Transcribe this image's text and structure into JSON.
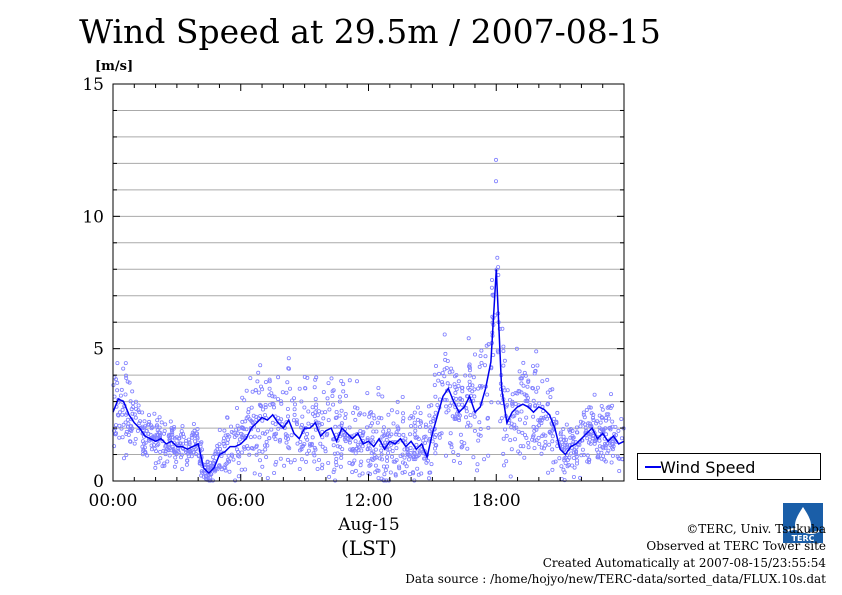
{
  "title": "Wind Speed at 29.5m / 2007-08-15",
  "legend": {
    "label": "Wind Speed"
  },
  "credits": {
    "copyright": "©TERC, Univ. Tsukuba",
    "observed": "Observed at TERC Tower site",
    "created": "Created Automatically at 2007-08-15/23:55:54",
    "source": "Data source : /home/hojyo/new/TERC-data/sorted_data/FLUX.10s.dat"
  },
  "logo": {
    "text": "TERC"
  },
  "colors": {
    "line": "#0000ee",
    "points": "#8080ff",
    "grid": "#aaaaaa"
  },
  "chart_data": {
    "type": "line",
    "ylabel": "[m/s]",
    "xlabel": "(LST)",
    "date_label": "Aug-15",
    "ylim": [
      0,
      15
    ],
    "xlim": [
      0,
      24
    ],
    "yticks": [
      {
        "v": 0,
        "label": "0"
      },
      {
        "v": 5,
        "label": "5"
      },
      {
        "v": 10,
        "label": "10"
      },
      {
        "v": 15,
        "label": "15"
      }
    ],
    "xticks": [
      {
        "v": 0,
        "label": "00:00"
      },
      {
        "v": 6,
        "label": "06:00"
      },
      {
        "v": 12,
        "label": "12:00"
      },
      {
        "v": 18,
        "label": "18:00"
      }
    ],
    "grid": "horizontal",
    "legend_position": "outside-right",
    "series": [
      {
        "name": "Wind Speed",
        "x": [
          0,
          0.25,
          0.5,
          0.75,
          1,
          1.25,
          1.5,
          1.75,
          2,
          2.25,
          2.5,
          2.75,
          3,
          3.25,
          3.5,
          3.75,
          4,
          4.25,
          4.5,
          4.75,
          5,
          5.25,
          5.5,
          5.75,
          6,
          6.25,
          6.5,
          6.75,
          7,
          7.25,
          7.5,
          7.75,
          8,
          8.25,
          8.5,
          8.75,
          9,
          9.25,
          9.5,
          9.75,
          10,
          10.25,
          10.5,
          10.75,
          11,
          11.25,
          11.5,
          11.75,
          12,
          12.25,
          12.5,
          12.75,
          13,
          13.25,
          13.5,
          13.75,
          14,
          14.25,
          14.5,
          14.75,
          15,
          15.25,
          15.5,
          15.75,
          16,
          16.25,
          16.5,
          16.75,
          17,
          17.25,
          17.5,
          17.75,
          18,
          18.25,
          18.5,
          18.75,
          19,
          19.25,
          19.5,
          19.75,
          20,
          20.25,
          20.5,
          20.75,
          21,
          21.25,
          21.5,
          21.75,
          22,
          22.25,
          22.5,
          22.75,
          23,
          23.25,
          23.5,
          23.75,
          24
        ],
        "values": [
          2.6,
          3.1,
          3.0,
          2.5,
          2.2,
          2.0,
          1.7,
          1.6,
          1.5,
          1.6,
          1.4,
          1.5,
          1.3,
          1.3,
          1.2,
          1.3,
          1.4,
          0.5,
          0.3,
          0.5,
          1.0,
          1.1,
          1.3,
          1.3,
          1.4,
          1.6,
          2.0,
          2.2,
          2.4,
          2.3,
          2.5,
          2.2,
          2.0,
          2.3,
          1.8,
          1.6,
          2.0,
          2.0,
          2.2,
          1.7,
          1.9,
          2.0,
          1.5,
          2.0,
          1.8,
          1.6,
          1.8,
          1.4,
          1.5,
          1.3,
          1.6,
          1.2,
          1.5,
          1.4,
          1.6,
          1.3,
          1.5,
          1.2,
          1.4,
          0.9,
          1.8,
          2.5,
          3.2,
          3.5,
          3.0,
          2.6,
          2.8,
          3.2,
          2.6,
          2.8,
          3.5,
          4.5,
          8.0,
          3.5,
          2.2,
          2.6,
          2.8,
          2.9,
          2.8,
          2.6,
          2.8,
          2.7,
          2.5,
          2.0,
          1.2,
          1.0,
          1.3,
          1.4,
          1.6,
          1.8,
          2.0,
          1.6,
          1.8,
          1.5,
          1.7,
          1.4,
          1.5
        ]
      }
    ],
    "sample_spread": [
      1.2,
      1.4,
      1.6,
      1.2,
      1.1,
      0.9,
      0.8,
      0.7,
      0.7,
      0.7,
      0.6,
      0.6,
      0.6,
      0.6,
      0.6,
      0.6,
      0.6,
      0.4,
      0.4,
      0.5,
      0.7,
      0.8,
      0.9,
      1.0,
      1.1,
      1.2,
      1.4,
      1.5,
      1.6,
      1.6,
      1.7,
      1.6,
      1.5,
      1.6,
      1.4,
      1.3,
      1.5,
      1.5,
      1.6,
      1.3,
      1.4,
      1.5,
      1.2,
      1.4,
      1.3,
      1.2,
      1.3,
      1.1,
      1.2,
      1.1,
      1.2,
      1.0,
      1.2,
      1.1,
      1.2,
      1.0,
      1.1,
      1.0,
      1.1,
      0.9,
      1.3,
      1.5,
      1.8,
      1.9,
      1.7,
      1.6,
      1.6,
      1.7,
      1.5,
      1.6,
      1.9,
      2.5,
      3.8,
      2.0,
      1.4,
      1.5,
      1.5,
      1.5,
      1.5,
      1.4,
      1.5,
      1.4,
      1.3,
      1.1,
      0.8,
      0.7,
      0.8,
      0.9,
      1.0,
      1.1,
      1.2,
      1.0,
      1.1,
      1.0,
      1.1,
      0.9,
      1.0
    ]
  }
}
